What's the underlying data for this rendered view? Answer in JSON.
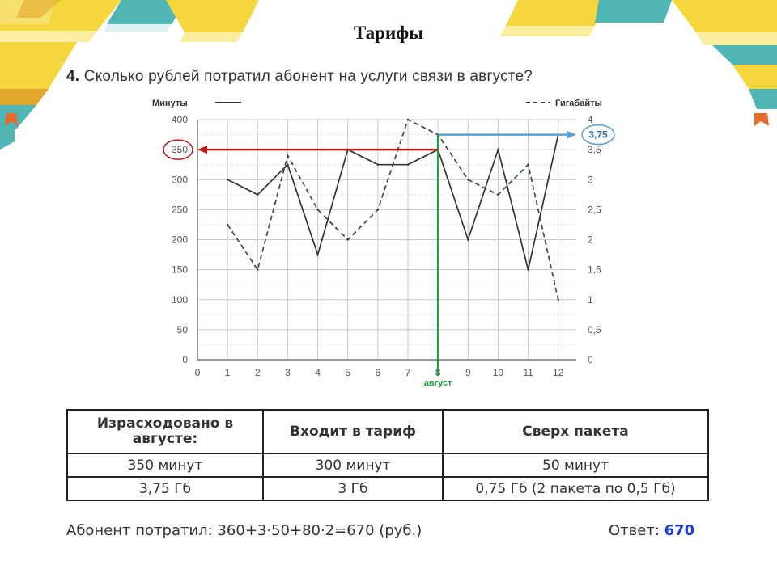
{
  "page": {
    "title": "Тарифы",
    "question_number": "4.",
    "question_text": "Сколько рублей потратил абонент на услуги связи в августе?"
  },
  "chart_data": {
    "type": "line",
    "legend_minutes": "Минуты",
    "legend_gigabytes": "Гигабайты",
    "x": [
      1,
      2,
      3,
      4,
      5,
      6,
      7,
      8,
      9,
      10,
      11,
      12
    ],
    "x_ticks": [
      0,
      1,
      2,
      3,
      4,
      5,
      6,
      7,
      8,
      9,
      10,
      11,
      12
    ],
    "xlim": [
      0,
      12.6
    ],
    "y_left_ticks": [
      0,
      50,
      100,
      150,
      200,
      250,
      300,
      350,
      400
    ],
    "y_left_labels": [
      "0",
      "50",
      "100",
      "150",
      "200",
      "250",
      "300",
      "350",
      "400"
    ],
    "ylim_left": [
      0,
      400
    ],
    "y_right_ticks": [
      0,
      0.5,
      1,
      1.5,
      2,
      2.5,
      3,
      3.5,
      4
    ],
    "y_right_labels": [
      "0",
      "0,5",
      "1",
      "1,5",
      "2",
      "2,5",
      "3",
      "3,5",
      "4"
    ],
    "ylim_right": [
      0,
      4
    ],
    "series": [
      {
        "name": "Минуты",
        "axis": "left",
        "style": "solid",
        "values": [
          300,
          275,
          325,
          175,
          350,
          325,
          325,
          350,
          200,
          350,
          150,
          375
        ]
      },
      {
        "name": "Гигабайты",
        "axis": "right",
        "style": "dashed",
        "values": [
          2.25,
          1.5,
          3.4,
          2.5,
          2.0,
          2.5,
          4.0,
          3.75,
          3.0,
          2.75,
          3.25,
          1.0
        ]
      }
    ],
    "highlight": {
      "x": 8,
      "x_label": "август",
      "left_value": 350,
      "left_label": "350",
      "right_value": 3.75,
      "right_label": "3,75"
    },
    "grid": true,
    "legend": "top"
  },
  "table": {
    "headers": [
      "Израсходовано в августе:",
      "Входит в тариф",
      "Сверх пакета"
    ],
    "rows": [
      [
        "350 минут",
        "300 минут",
        "50 минут"
      ],
      [
        "3,75 Гб",
        "3 Гб",
        "0,75 Гб (2 пакета по 0,5 Гб)"
      ]
    ]
  },
  "summary": {
    "label": "Абонент потратил:",
    "formula": "360+3·50+80·2=670",
    "unit": "(руб.)",
    "answer_label": "Ответ:",
    "answer_value": "670"
  },
  "colors": {
    "book_yellow": "#f5d63d",
    "book_teal": "#4fb5b5",
    "highlight_red": "#c01818",
    "highlight_green": "#1e9e3e",
    "highlight_blue": "#5a9fd0",
    "answer_blue": "#1f3fd6"
  }
}
